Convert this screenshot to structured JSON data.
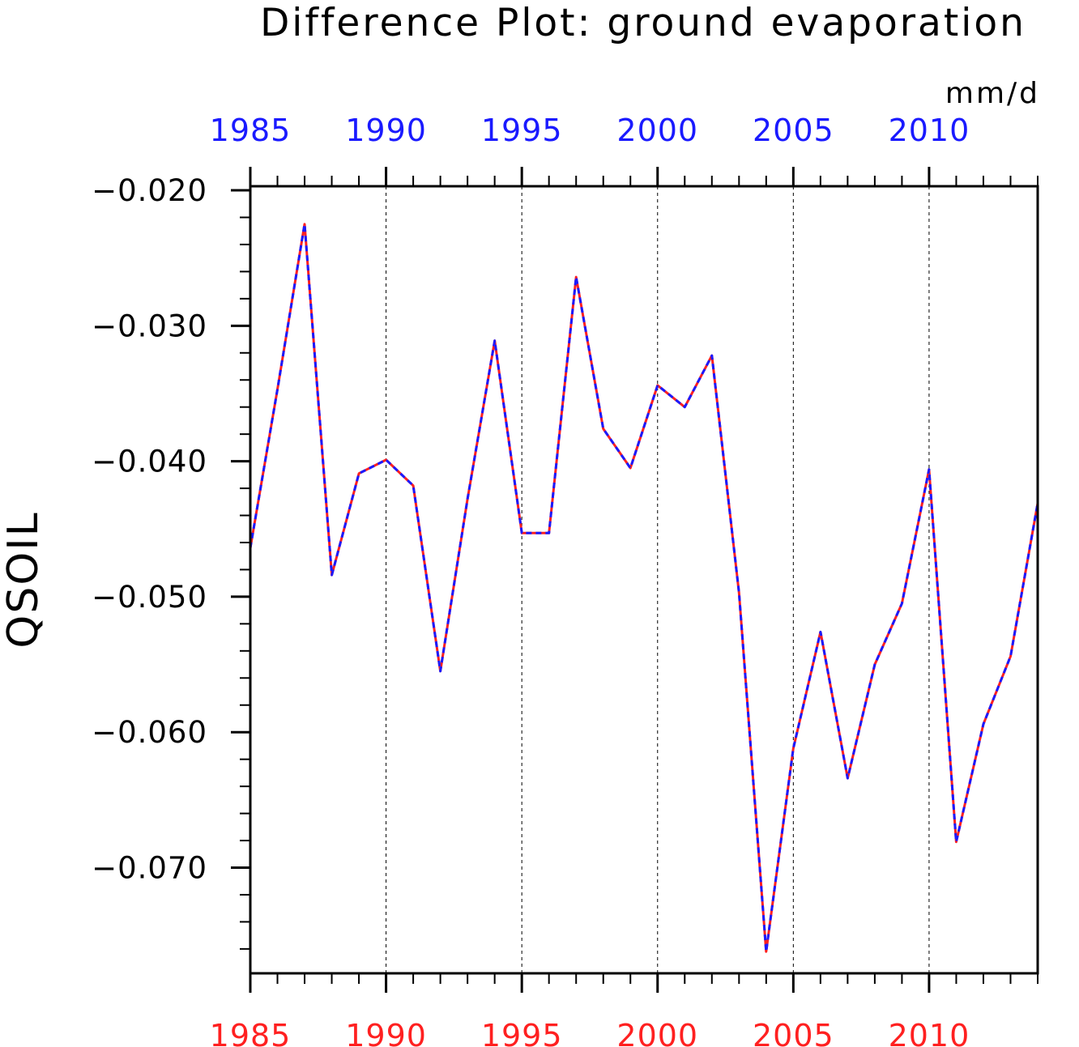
{
  "chart_data": {
    "type": "line",
    "title": "Difference Plot: ground evaporation",
    "units": "mm/d",
    "ylabel": "QSOIL",
    "xlabel": "",
    "xlim": [
      1985,
      2014
    ],
    "ylim": [
      -0.0778,
      -0.0197
    ],
    "yticks": [
      -0.02,
      -0.03,
      -0.04,
      -0.05,
      -0.06,
      -0.07
    ],
    "ytick_labels": [
      "−0.020",
      "−0.030",
      "−0.040",
      "−0.050",
      "−0.060",
      "−0.070"
    ],
    "xticks_bottom": [
      "1985",
      "1990",
      "1995",
      "2000",
      "2005",
      "2010"
    ],
    "xticks_top": [
      "1985",
      "1990",
      "1995",
      "2000",
      "2005",
      "2010"
    ],
    "grid": "vertical dashed at 1990, 1995, 2000, 2005, 2010",
    "colors": {
      "bottom_axis_labels": "#ff2020",
      "top_axis_labels": "#1a1aff",
      "series_a": "#ff2020",
      "series_b": "#1a1aff"
    },
    "x": [
      1985,
      1986,
      1987,
      1988,
      1989,
      1990,
      1991,
      1992,
      1993,
      1994,
      1995,
      1996,
      1997,
      1998,
      1999,
      2000,
      2001,
      2002,
      2003,
      2004,
      2005,
      2006,
      2007,
      2008,
      2009,
      2010,
      2011,
      2012,
      2013,
      2014
    ],
    "series": [
      {
        "values": [
          -0.0464,
          -0.0347,
          -0.0225,
          -0.0484,
          -0.0409,
          -0.0399,
          -0.0418,
          -0.0555,
          -0.0428,
          -0.0311,
          -0.0453,
          -0.0453,
          -0.0264,
          -0.0376,
          -0.0405,
          -0.0344,
          -0.036,
          -0.0322,
          -0.0497,
          -0.0762,
          -0.0612,
          -0.0526,
          -0.0634,
          -0.055,
          -0.0505,
          -0.0406,
          -0.0681,
          -0.0594,
          -0.0544,
          -0.0431
        ]
      },
      {
        "values": [
          -0.0464,
          -0.0347,
          -0.0225,
          -0.0484,
          -0.0409,
          -0.0399,
          -0.0418,
          -0.0555,
          -0.0428,
          -0.0311,
          -0.0453,
          -0.0453,
          -0.0264,
          -0.0376,
          -0.0405,
          -0.0344,
          -0.036,
          -0.0322,
          -0.0497,
          -0.0762,
          -0.0612,
          -0.0526,
          -0.0634,
          -0.055,
          -0.0505,
          -0.0406,
          -0.0681,
          -0.0594,
          -0.0544,
          -0.0431
        ]
      }
    ]
  }
}
